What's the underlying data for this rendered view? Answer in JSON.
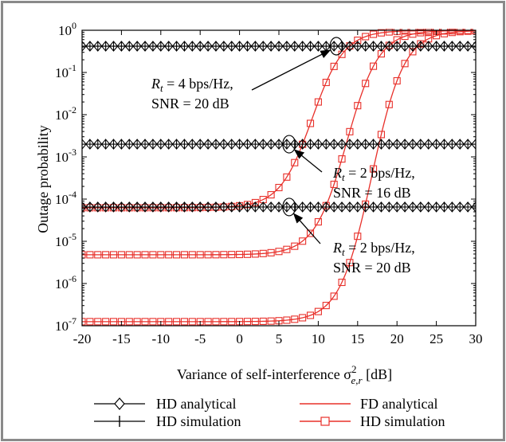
{
  "chart_data": {
    "type": "line",
    "title": "",
    "xlabel_prefix": "Variance of self-interference σ",
    "xlabel_sup": "2",
    "xlabel_sub": "e,r",
    "xlabel_unit": " [dB]",
    "ylabel": "Outage probability",
    "xlim": [
      -20,
      30
    ],
    "ylim_log10": [
      -7,
      0
    ],
    "yscale": "log",
    "x_ticks": [
      -20,
      -15,
      -10,
      -5,
      0,
      5,
      10,
      15,
      20,
      25,
      30
    ],
    "y_tick_exponents": [
      0,
      -1,
      -2,
      -3,
      -4,
      -5,
      -6,
      -7
    ],
    "y_tick_base": "10",
    "colors": {
      "hd": "#000000",
      "fd": "#e8302a"
    },
    "hd_levels": [
      0.42,
      0.002,
      6.5e-05
    ],
    "series": [
      {
        "name": "HD analytical",
        "group": "hd",
        "marker": "diamond",
        "x_step": 1
      },
      {
        "name": "HD simulation",
        "group": "hd",
        "marker": "plus",
        "x_step": 1
      },
      {
        "name": "FD analytical",
        "group": "fd",
        "marker": "none"
      },
      {
        "name": "HD simulation",
        "group": "fd",
        "marker": "square",
        "x_step": 1
      }
    ],
    "fd_curves": [
      {
        "floor": 6.25e-05,
        "x_half": 9.2,
        "width": 4.5,
        "top": 0.99
      },
      {
        "floor": 4.8e-06,
        "x_half": 13.6,
        "width": 4.5,
        "top": 0.99
      },
      {
        "floor": 1.25e-07,
        "x_half": 16.8,
        "width": 4.5,
        "top": 0.99
      }
    ],
    "annotations": [
      {
        "r_label": "R",
        "r_sub": "t",
        "r_value": " = 4 bps/Hz,",
        "snr": "SNR = 20 dB",
        "point_x": 12.3,
        "point_y": 0.42
      },
      {
        "r_label": "R",
        "r_sub": "t",
        "r_value": " = 2 bps/Hz,",
        "snr": "SNR = 16 dB",
        "point_x": 6.3,
        "point_y": 0.002
      },
      {
        "r_label": "R",
        "r_sub": "t",
        "r_value": " = 2 bps/Hz,",
        "snr": "SNR = 20 dB",
        "point_x": 6.3,
        "point_y": 6.5e-05
      }
    ],
    "legend_placement": "bottom",
    "grid": false
  }
}
